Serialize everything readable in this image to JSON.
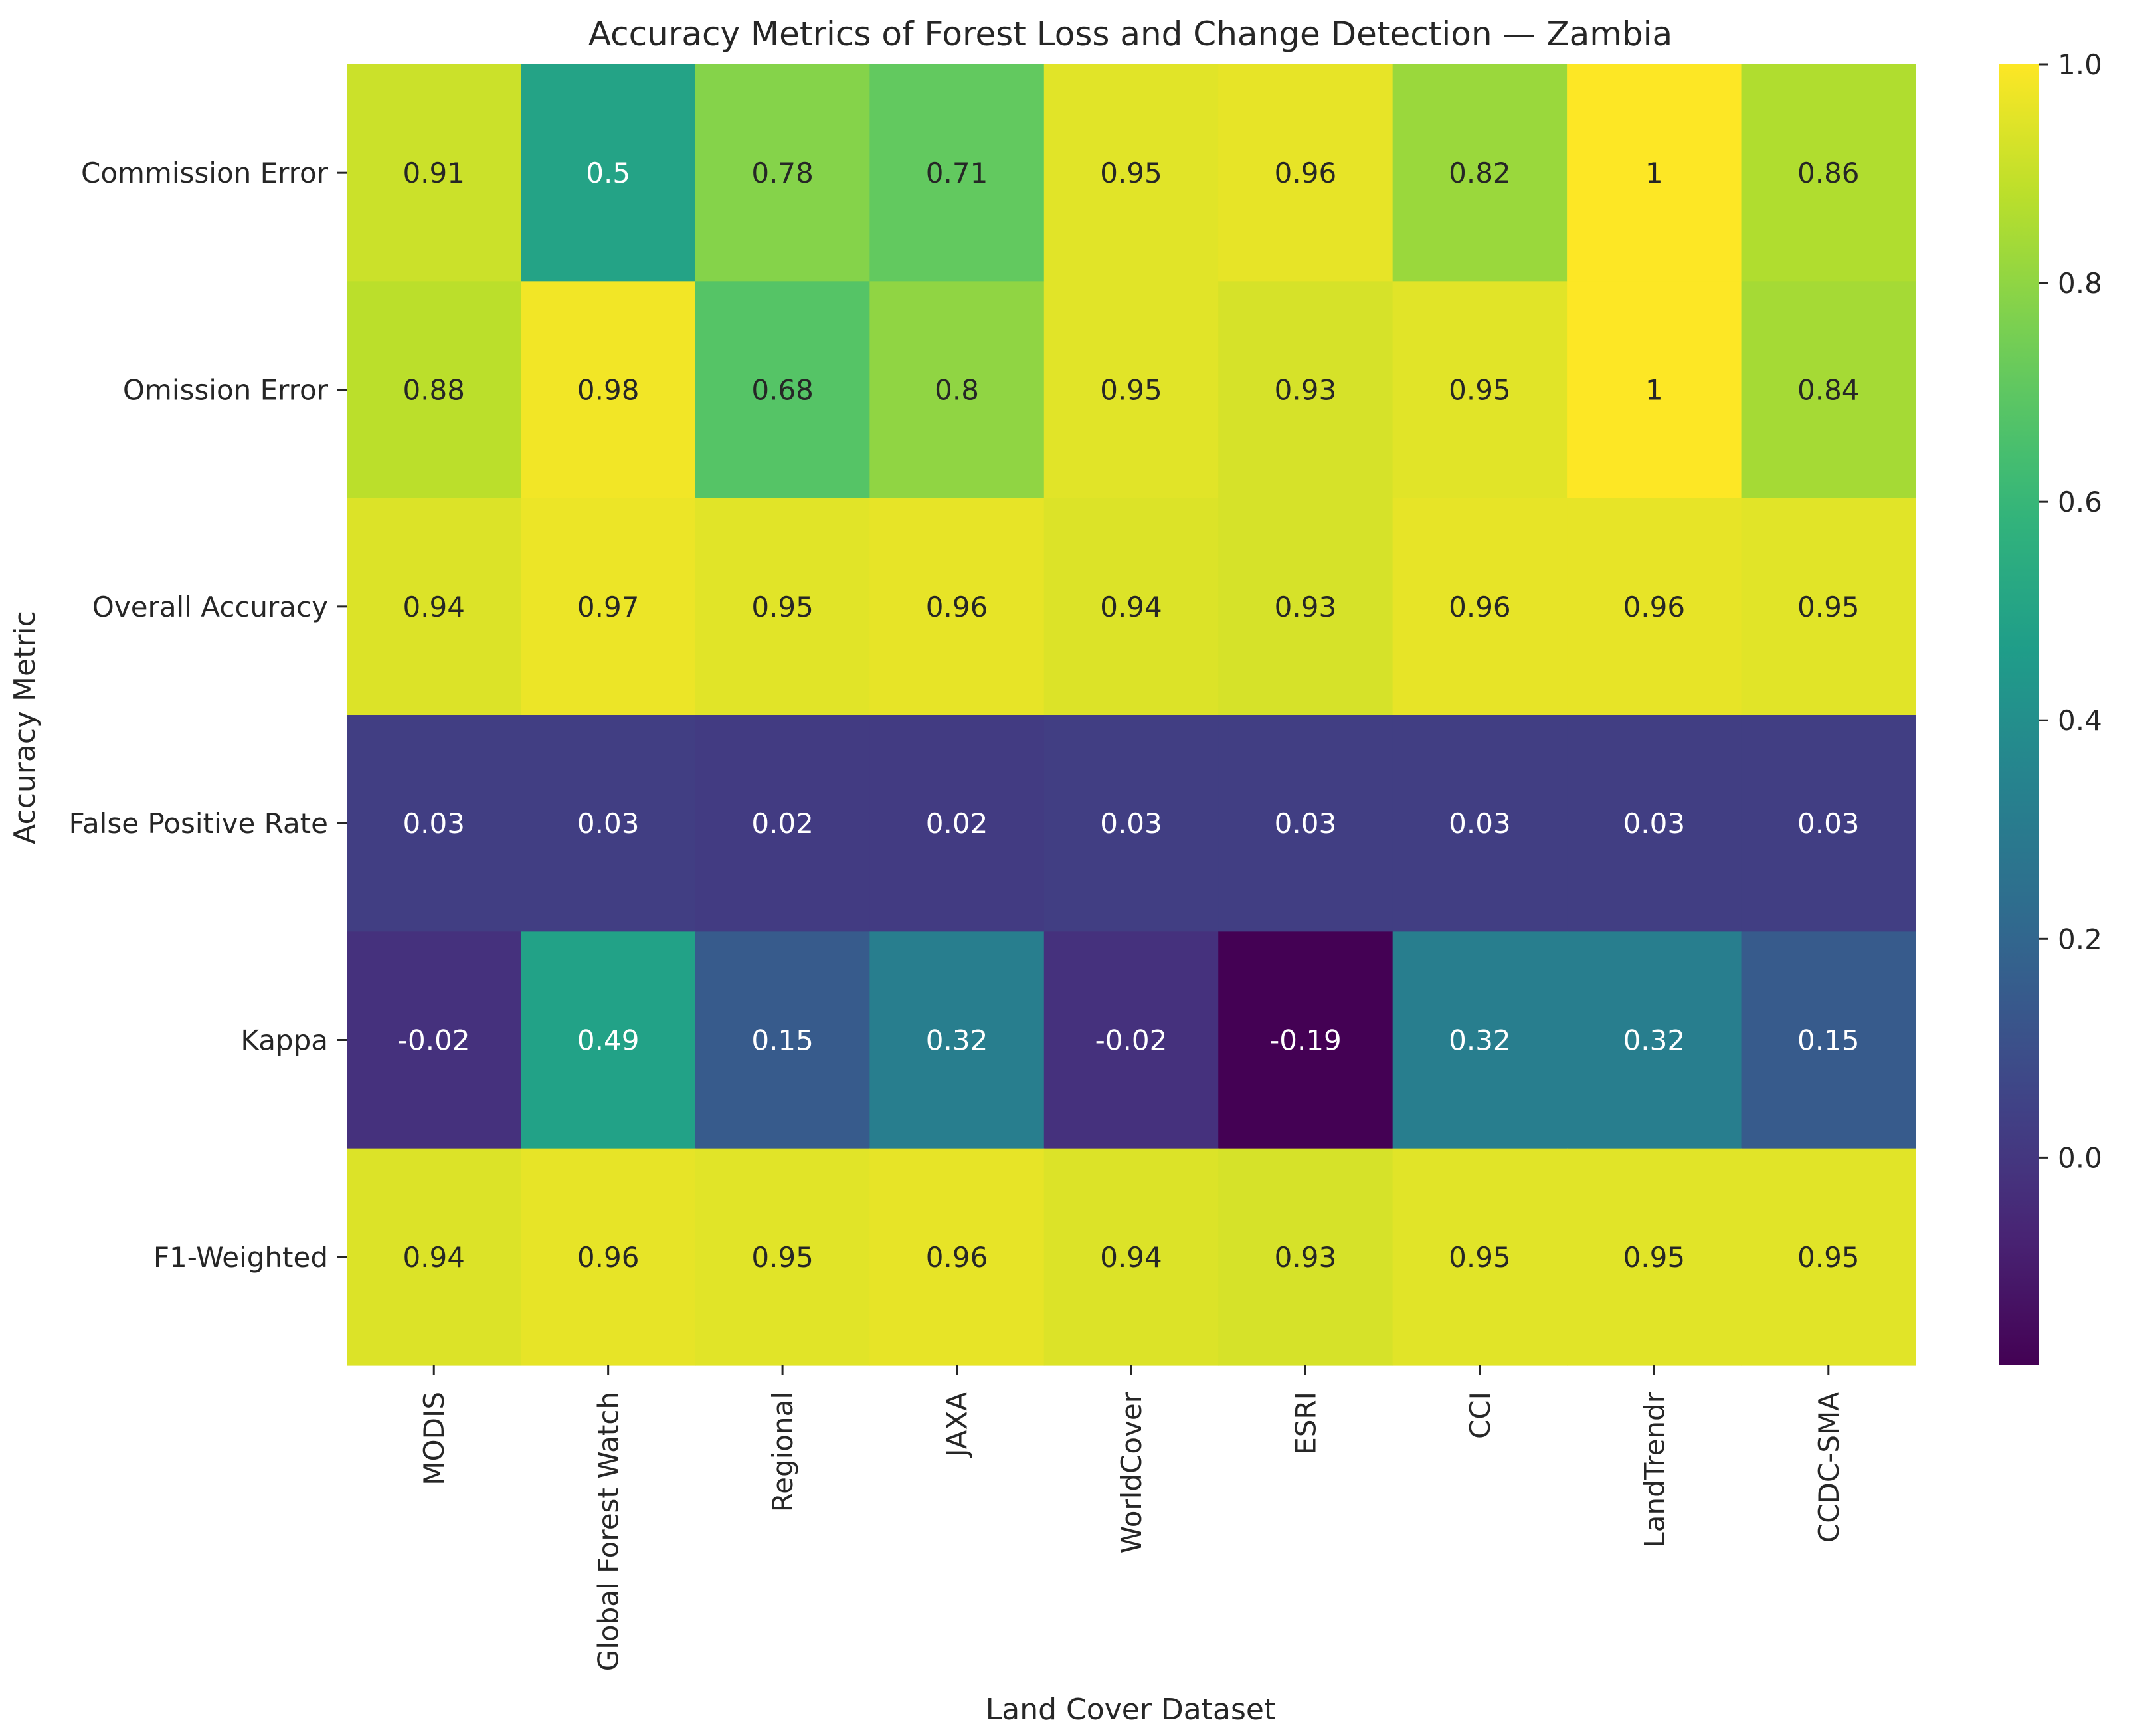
{
  "chart_data": {
    "type": "heatmap",
    "title": "Accuracy Metrics of Forest Loss and Change Detection — Zambia",
    "xlabel": "Land Cover Dataset",
    "ylabel": "Accuracy Metric",
    "x_categories": [
      "MODIS",
      "Global Forest Watch",
      "Regional",
      "JAXA",
      "WorldCover",
      "ESRI",
      "CCI",
      "LandTrendr",
      "CCDC-SMA"
    ],
    "y_categories": [
      "Commission Error",
      "Omission Error",
      "Overall Accuracy",
      "False Positive Rate",
      "Kappa",
      "F1-Weighted"
    ],
    "values": [
      [
        0.91,
        0.5,
        0.78,
        0.71,
        0.95,
        0.96,
        0.82,
        1,
        0.86
      ],
      [
        0.88,
        0.98,
        0.68,
        0.8,
        0.95,
        0.93,
        0.95,
        1,
        0.84
      ],
      [
        0.94,
        0.97,
        0.95,
        0.96,
        0.94,
        0.93,
        0.96,
        0.96,
        0.95
      ],
      [
        0.03,
        0.03,
        0.02,
        0.02,
        0.03,
        0.03,
        0.03,
        0.03,
        0.03
      ],
      [
        -0.02,
        0.49,
        0.15,
        0.32,
        -0.02,
        -0.19,
        0.32,
        0.32,
        0.15
      ],
      [
        0.94,
        0.96,
        0.95,
        0.96,
        0.94,
        0.93,
        0.95,
        0.95,
        0.95
      ]
    ],
    "value_labels": [
      [
        "0.91",
        "0.5",
        "0.78",
        "0.71",
        "0.95",
        "0.96",
        "0.82",
        "1",
        "0.86"
      ],
      [
        "0.88",
        "0.98",
        "0.68",
        "0.8",
        "0.95",
        "0.93",
        "0.95",
        "1",
        "0.84"
      ],
      [
        "0.94",
        "0.97",
        "0.95",
        "0.96",
        "0.94",
        "0.93",
        "0.96",
        "0.96",
        "0.95"
      ],
      [
        "0.03",
        "0.03",
        "0.02",
        "0.02",
        "0.03",
        "0.03",
        "0.03",
        "0.03",
        "0.03"
      ],
      [
        "-0.02",
        "0.49",
        "0.15",
        "0.32",
        "-0.02",
        "-0.19",
        "0.32",
        "0.32",
        "0.15"
      ],
      [
        "0.94",
        "0.96",
        "0.95",
        "0.96",
        "0.94",
        "0.93",
        "0.95",
        "0.95",
        "0.95"
      ]
    ],
    "colormap": "viridis",
    "vmin": -0.19,
    "vmax": 1.0,
    "colorbar": {
      "ticks": [
        0.0,
        0.2,
        0.4,
        0.6,
        0.8,
        1.0
      ],
      "tick_labels": [
        "0.0",
        "0.2",
        "0.4",
        "0.6",
        "0.8",
        "1.0"
      ],
      "placement": "right"
    },
    "grid": false
  }
}
